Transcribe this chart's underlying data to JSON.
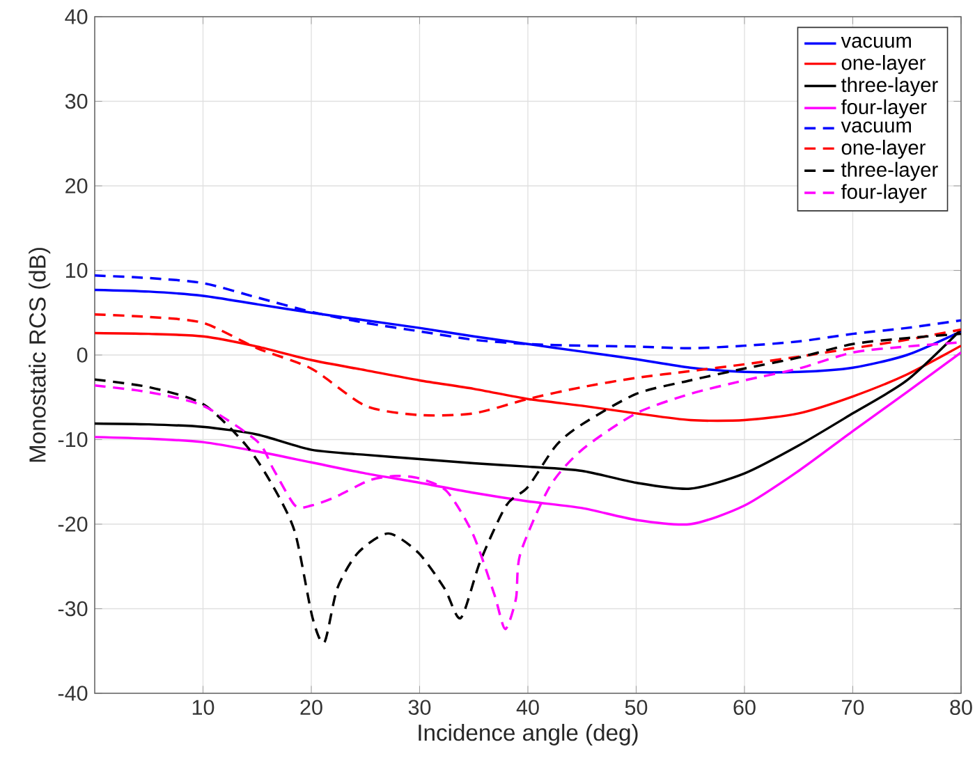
{
  "chart_data": {
    "type": "line",
    "xlabel": "Incidence angle (deg)",
    "ylabel": "Monostatic RCS (dB)",
    "x": [
      0,
      5,
      10,
      15,
      20,
      25,
      30,
      35,
      40,
      45,
      50,
      55,
      60,
      65,
      70,
      75,
      80
    ],
    "xlim": [
      0,
      80
    ],
    "xticks": [
      10,
      20,
      30,
      40,
      50,
      60,
      70,
      80
    ],
    "ylim": [
      -40,
      40
    ],
    "yticks": [
      -40,
      -30,
      -20,
      -10,
      0,
      10,
      20,
      30,
      40
    ],
    "grid": true,
    "legend": "top right",
    "marker": "none",
    "series": [
      {
        "name": "vacuum",
        "color": "#0000ff",
        "line_style": "solid",
        "values": [
          7.7,
          7.5,
          7,
          6,
          5,
          4.1,
          3.2,
          2.2,
          1.3,
          0.4,
          -0.5,
          -1.5,
          -2,
          -2,
          -1.5,
          0,
          2.8
        ]
      },
      {
        "name": "one-layer",
        "color": "#ff0000",
        "line_style": "solid",
        "values": [
          2.6,
          2.5,
          2.2,
          1,
          -0.6,
          -1.8,
          -3,
          -4,
          -5.2,
          -6,
          -6.9,
          -7.7,
          -7.7,
          -6.9,
          -4.9,
          -2.3,
          1.1
        ]
      },
      {
        "name": "three-layer",
        "color": "#000000",
        "line_style": "solid",
        "values": [
          -8.1,
          -8.2,
          -8.5,
          -9.4,
          -11.2,
          -11.8,
          -12.3,
          -12.8,
          -13.2,
          -13.7,
          -15.1,
          -15.8,
          -14,
          -10.7,
          -6.9,
          -3,
          3
        ]
      },
      {
        "name": "four-layer",
        "color": "#ff00ff",
        "line_style": "solid",
        "values": [
          -9.7,
          -9.9,
          -10.3,
          -11.4,
          -12.7,
          -14,
          -15.1,
          -16.3,
          -17.3,
          -18.1,
          -19.5,
          -20,
          -17.8,
          -13.7,
          -9,
          -4.4,
          0.3
        ]
      },
      {
        "name": "vacuum",
        "color": "#0000ff",
        "line_style": "dashed",
        "values": [
          9.4,
          9.1,
          8.5,
          6.8,
          5.1,
          3.8,
          2.8,
          1.8,
          1.3,
          1.1,
          1.0,
          0.8,
          1.1,
          1.6,
          2.5,
          3.2,
          4.1
        ]
      },
      {
        "name": "one-layer",
        "color": "#ff0000",
        "line_style": "dashed",
        "values": [
          4.8,
          4.5,
          3.8,
          0.8,
          -1.6,
          -6,
          -7.1,
          -6.9,
          -5.2,
          -3.8,
          -2.7,
          -1.9,
          -1.1,
          -0.2,
          0.8,
          1.8,
          3
        ]
      },
      {
        "name": "three-layer",
        "color": "#000000",
        "line_style": "dashed",
        "x": [
          0,
          5,
          10,
          14,
          16.5,
          18.5,
          20.1,
          21.2,
          22.4,
          24.3,
          27.1,
          29.9,
          32.3,
          33.8,
          35.6,
          38,
          40,
          42.6,
          45,
          50,
          55,
          60,
          65,
          70,
          75,
          80
        ],
        "values": [
          -2.9,
          -3.8,
          -5.8,
          -10.7,
          -15.6,
          -21,
          -31,
          -34,
          -27.6,
          -23.4,
          -21.1,
          -23.4,
          -27.6,
          -31.1,
          -24.4,
          -17.8,
          -15.6,
          -10.7,
          -8.2,
          -4.6,
          -3,
          -1.6,
          -0.3,
          1.3,
          2,
          2.5
        ]
      },
      {
        "name": "four-layer",
        "color": "#ff00ff",
        "line_style": "dashed",
        "x": [
          0,
          5,
          10,
          15,
          16.5,
          18.5,
          20,
          22.2,
          25.4,
          27.8,
          30,
          32.5,
          34.9,
          36.9,
          37.9,
          38.9,
          39.3,
          42,
          45,
          50,
          55,
          60,
          65,
          70,
          75,
          80
        ],
        "values": [
          -3.6,
          -4.4,
          -6,
          -10.2,
          -13.5,
          -17.8,
          -17.8,
          -16.8,
          -14.8,
          -14.3,
          -14.6,
          -16.1,
          -21.1,
          -28.3,
          -32.4,
          -28.8,
          -23.5,
          -15.6,
          -11.2,
          -6.9,
          -4.6,
          -3,
          -1.6,
          0.3,
          1,
          1.5
        ]
      }
    ]
  }
}
